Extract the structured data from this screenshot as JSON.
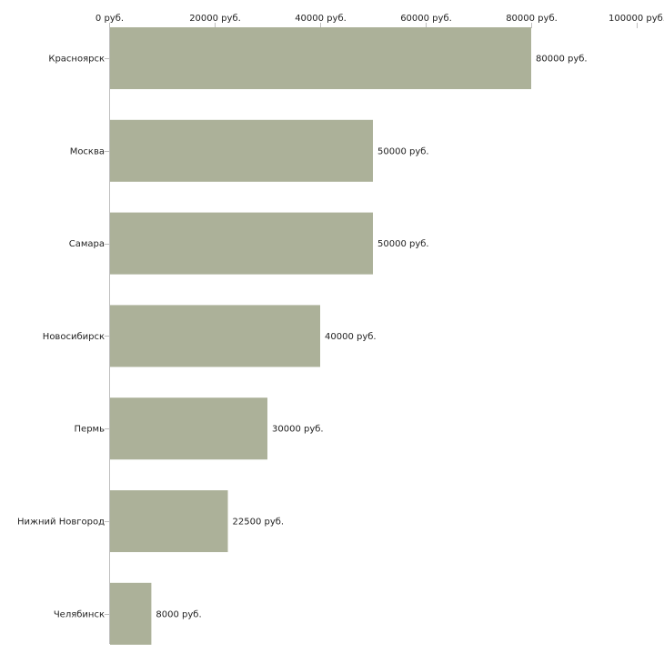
{
  "chart_data": {
    "type": "bar",
    "orientation": "horizontal",
    "title": "",
    "xlabel": "",
    "ylabel": "",
    "xlim": [
      0,
      100000
    ],
    "x_tick_values": [
      0,
      20000,
      40000,
      60000,
      80000,
      100000
    ],
    "x_tick_labels": [
      "0 руб.",
      "20000 руб.",
      "40000 руб.",
      "60000 руб.",
      "80000 руб.",
      "100000 руб."
    ],
    "categories": [
      "Красноярск",
      "Москва",
      "Самара",
      "Новосибирск",
      "Пермь",
      "Нижний Новгород",
      "Челябинск"
    ],
    "values": [
      80000,
      50000,
      50000,
      40000,
      30000,
      22500,
      8000
    ],
    "value_labels": [
      "80000 руб.",
      "50000 руб.",
      "50000 руб.",
      "40000 руб.",
      "30000 руб.",
      "22500 руб.",
      "8000 руб."
    ],
    "bar_color": "#acb199",
    "axis_color": "#bfbfbf",
    "text_color": "#222222",
    "grid": false,
    "legend": "none"
  }
}
